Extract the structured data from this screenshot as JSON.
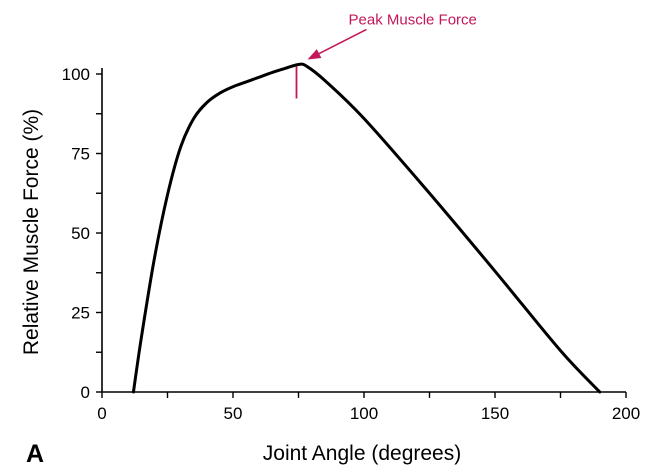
{
  "chart_data": {
    "type": "line",
    "panel_label": "A",
    "xlabel": "Joint Angle (degrees)",
    "ylabel": "Relative Muscle Force (%)",
    "xlim": [
      0,
      200
    ],
    "ylim": [
      0,
      105
    ],
    "x_ticks": [
      0,
      50,
      100,
      150,
      200
    ],
    "x_tick_labels": [
      "0",
      "50",
      "100",
      "150",
      "200"
    ],
    "y_ticks": [
      0,
      25,
      50,
      75,
      100
    ],
    "y_tick_labels": [
      "0",
      "25",
      "50",
      "75",
      "100"
    ],
    "grid": false,
    "series": [
      {
        "x": [
          12,
          15,
          20,
          25,
          30,
          35,
          40,
          45,
          50,
          55,
          60,
          65,
          70,
          75,
          78,
          85,
          100,
          125,
          150,
          175,
          190
        ],
        "y": [
          0,
          17,
          42,
          62,
          77,
          86,
          91,
          94,
          96,
          97.5,
          99,
          100.5,
          101.8,
          103,
          102.5,
          98,
          86,
          62.5,
          38,
          13,
          0
        ],
        "color": "#000000"
      }
    ],
    "annotations": [
      {
        "text": "Peak Muscle Force",
        "x": 75,
        "y": 103,
        "color": "#c2185b"
      }
    ]
  }
}
